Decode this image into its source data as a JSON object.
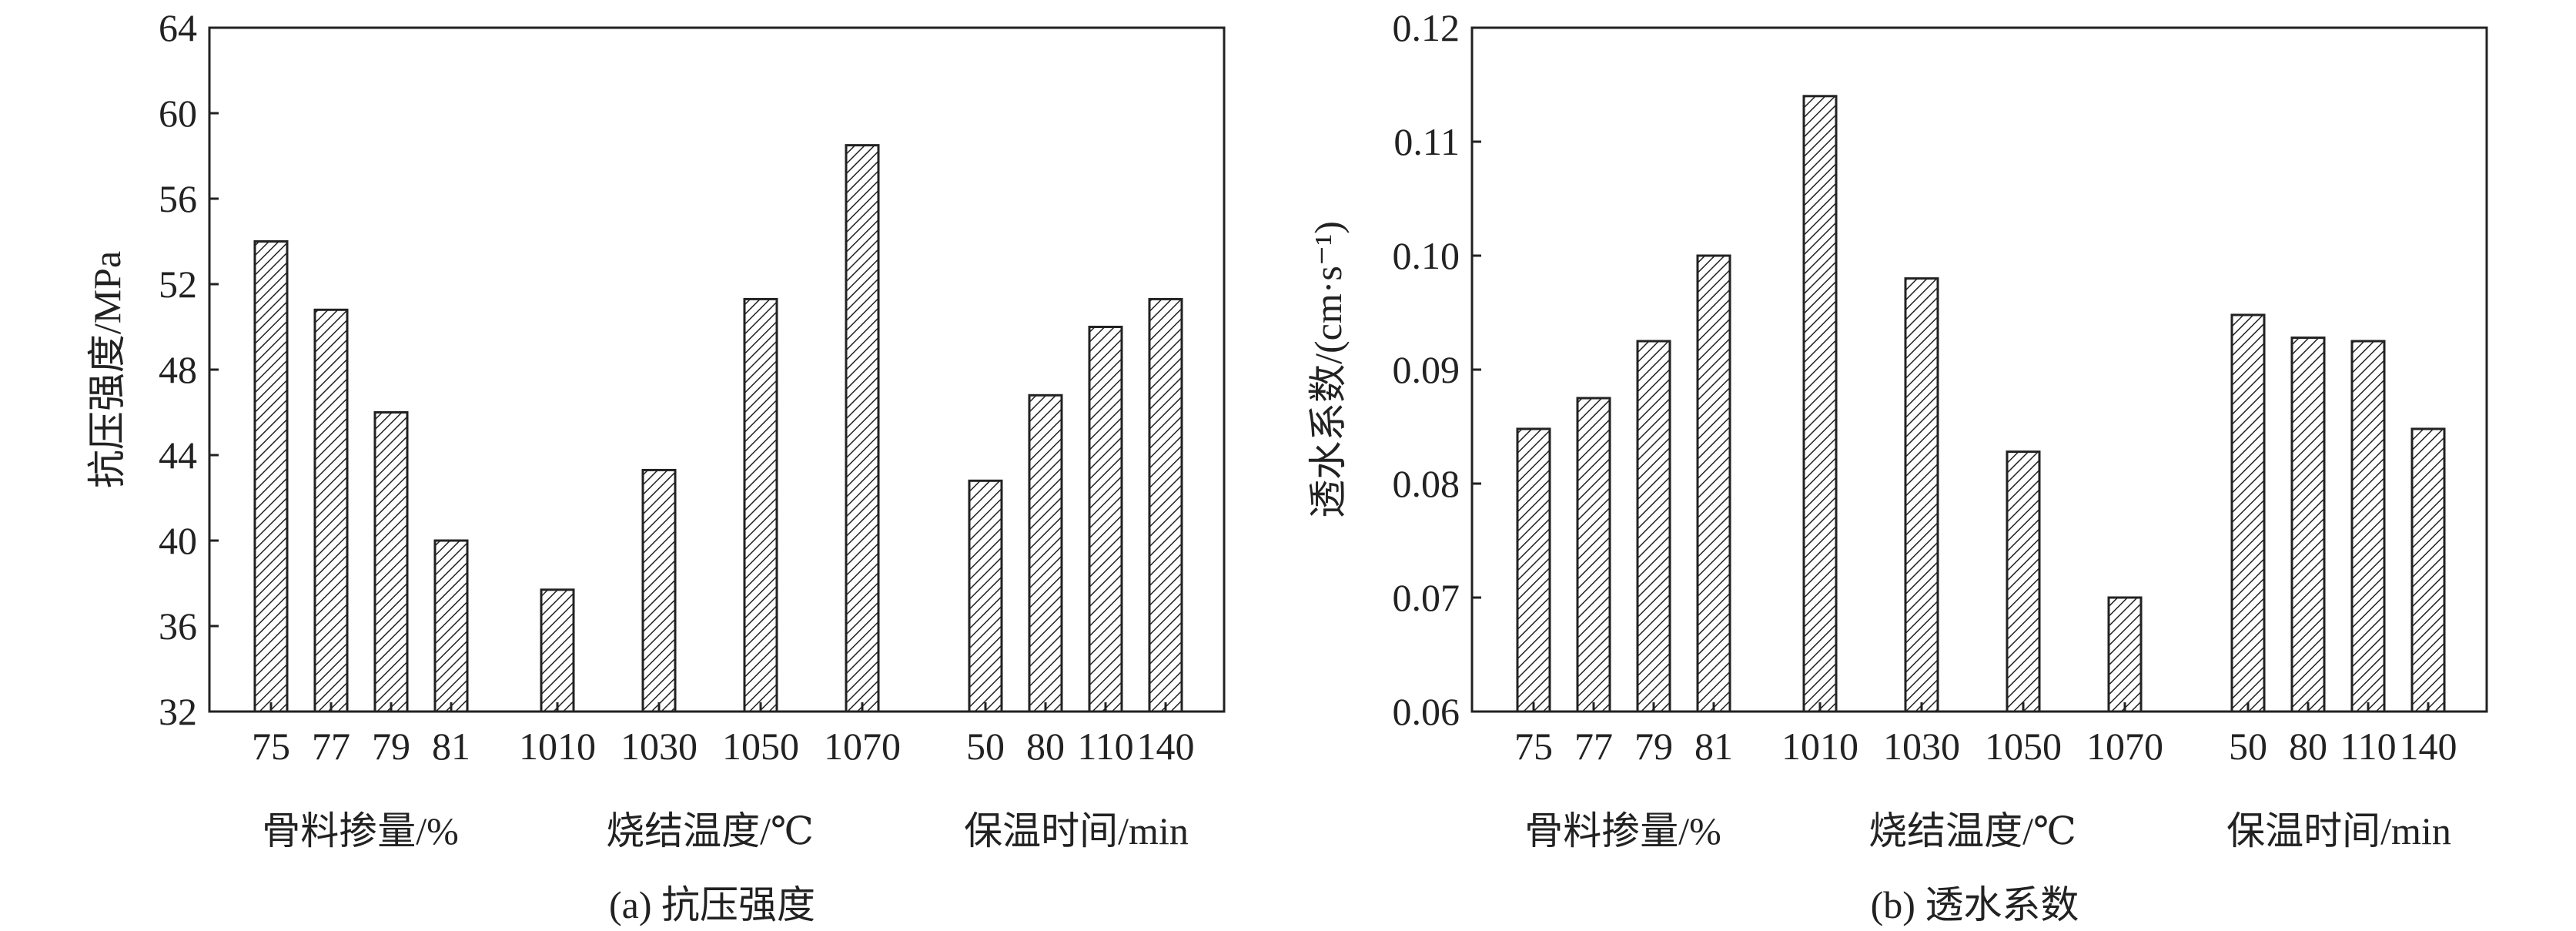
{
  "chart_data": [
    {
      "type": "bar",
      "panel_label": "(a) 抗压强度",
      "ylabel": "抗压强度/MPa",
      "ylim": [
        32,
        64
      ],
      "yticks": [
        "32",
        "36",
        "40",
        "44",
        "48",
        "52",
        "56",
        "60",
        "64"
      ],
      "grid": false,
      "fill_pattern": "diagonal-hatch",
      "groups": [
        {
          "label": "骨料掺量/%",
          "categories": [
            "75",
            "77",
            "79",
            "81"
          ],
          "values": [
            54.0,
            50.8,
            46.0,
            40.0
          ]
        },
        {
          "label": "烧结温度/℃",
          "categories": [
            "1010",
            "1030",
            "1050",
            "1070"
          ],
          "values": [
            37.7,
            43.3,
            51.3,
            58.5
          ]
        },
        {
          "label": "保温时间/min",
          "categories": [
            "50",
            "80",
            "110",
            "140"
          ],
          "values": [
            42.8,
            46.8,
            50.0,
            51.3
          ]
        }
      ]
    },
    {
      "type": "bar",
      "panel_label": "(b) 透水系数",
      "ylabel": "透水系数/(cm·s⁻¹)",
      "ylim": [
        0.06,
        0.12
      ],
      "yticks": [
        "0.06",
        "0.07",
        "0.08",
        "0.09",
        "0.10",
        "0.11",
        "0.12"
      ],
      "grid": false,
      "fill_pattern": "diagonal-hatch",
      "groups": [
        {
          "label": "骨料掺量/%",
          "categories": [
            "75",
            "77",
            "79",
            "81"
          ],
          "values": [
            0.0848,
            0.0875,
            0.0925,
            0.1
          ]
        },
        {
          "label": "烧结温度/℃",
          "categories": [
            "1010",
            "1030",
            "1050",
            "1070"
          ],
          "values": [
            0.114,
            0.098,
            0.0828,
            0.07
          ]
        },
        {
          "label": "保温时间/min",
          "categories": [
            "50",
            "80",
            "110",
            "140"
          ],
          "values": [
            0.0948,
            0.0928,
            0.0925,
            0.0848
          ]
        }
      ]
    }
  ]
}
